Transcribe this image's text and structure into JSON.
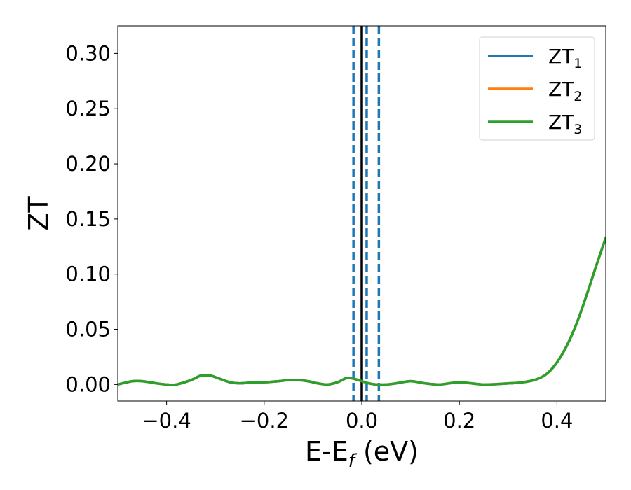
{
  "chart_data": {
    "type": "line",
    "xlabel": "E-E",
    "xlabel_sub": "f",
    "xlabel_unit": " (eV)",
    "ylabel": "ZT",
    "xlim": [
      -0.5,
      0.5
    ],
    "ylim": [
      -0.015,
      0.325
    ],
    "x_ticks": [
      -0.4,
      -0.2,
      0.0,
      0.2,
      0.4
    ],
    "x_tick_labels": [
      "−0.4",
      "−0.2",
      "0.0",
      "0.2",
      "0.4"
    ],
    "y_ticks": [
      0.0,
      0.05,
      0.1,
      0.15,
      0.2,
      0.25,
      0.3
    ],
    "y_tick_labels": [
      "0.00",
      "0.05",
      "0.10",
      "0.15",
      "0.20",
      "0.25",
      "0.30"
    ],
    "grid": false,
    "legend_position": "top-right",
    "colors": {
      "series1": "#1f77b4",
      "series2": "#ff7f0e",
      "series3": "#2ca02c",
      "vline_solid": "#000000",
      "vline_dashed": "#1f77b4"
    },
    "vlines": {
      "solid": [
        0.0
      ],
      "dashed": [
        -0.017,
        0.01,
        0.035
      ]
    },
    "series": [
      {
        "name": "ZT",
        "sub": "1",
        "color": "#1f77b4",
        "x": [
          -0.5,
          -0.47,
          -0.45,
          -0.42,
          -0.4,
          -0.38,
          -0.35,
          -0.33,
          -0.31,
          -0.29,
          -0.27,
          -0.25,
          -0.22,
          -0.2,
          -0.17,
          -0.15,
          -0.13,
          -0.11,
          -0.09,
          -0.07,
          -0.05,
          -0.03,
          -0.015,
          0.0,
          0.015,
          0.03,
          0.05,
          0.07,
          0.1,
          0.13,
          0.16,
          0.2,
          0.25,
          0.3,
          0.33,
          0.36,
          0.38,
          0.4,
          0.42,
          0.44,
          0.46,
          0.48,
          0.5
        ],
        "y": [
          0.0,
          0.003,
          0.003,
          0.001,
          0.0,
          0.0,
          0.004,
          0.008,
          0.008,
          0.005,
          0.002,
          0.001,
          0.002,
          0.002,
          0.003,
          0.004,
          0.004,
          0.003,
          0.001,
          0.0,
          0.002,
          0.006,
          0.005,
          0.003,
          0.001,
          0.0,
          0.0,
          0.001,
          0.003,
          0.001,
          0.0,
          0.002,
          0.0,
          0.001,
          0.002,
          0.005,
          0.01,
          0.02,
          0.035,
          0.055,
          0.08,
          0.107,
          0.133
        ]
      },
      {
        "name": "ZT",
        "sub": "2",
        "color": "#ff7f0e",
        "x": [
          -0.5,
          -0.47,
          -0.45,
          -0.42,
          -0.4,
          -0.38,
          -0.35,
          -0.33,
          -0.31,
          -0.29,
          -0.27,
          -0.25,
          -0.22,
          -0.2,
          -0.17,
          -0.15,
          -0.13,
          -0.11,
          -0.09,
          -0.07,
          -0.05,
          -0.03,
          -0.015,
          0.0,
          0.015,
          0.03,
          0.05,
          0.07,
          0.1,
          0.13,
          0.16,
          0.2,
          0.25,
          0.3,
          0.33,
          0.36,
          0.38,
          0.4,
          0.42,
          0.44,
          0.46,
          0.48,
          0.5
        ],
        "y": [
          0.0,
          0.003,
          0.003,
          0.001,
          0.0,
          0.0,
          0.004,
          0.008,
          0.008,
          0.005,
          0.002,
          0.001,
          0.002,
          0.002,
          0.003,
          0.004,
          0.004,
          0.003,
          0.001,
          0.0,
          0.002,
          0.006,
          0.005,
          0.003,
          0.001,
          0.0,
          0.0,
          0.001,
          0.003,
          0.001,
          0.0,
          0.002,
          0.0,
          0.001,
          0.002,
          0.005,
          0.01,
          0.02,
          0.035,
          0.055,
          0.08,
          0.107,
          0.133
        ]
      },
      {
        "name": "ZT",
        "sub": "3",
        "color": "#2ca02c",
        "x": [
          -0.5,
          -0.47,
          -0.45,
          -0.42,
          -0.4,
          -0.38,
          -0.35,
          -0.33,
          -0.31,
          -0.29,
          -0.27,
          -0.25,
          -0.22,
          -0.2,
          -0.17,
          -0.15,
          -0.13,
          -0.11,
          -0.09,
          -0.07,
          -0.05,
          -0.03,
          -0.015,
          0.0,
          0.015,
          0.03,
          0.05,
          0.07,
          0.1,
          0.13,
          0.16,
          0.2,
          0.25,
          0.3,
          0.33,
          0.36,
          0.38,
          0.4,
          0.42,
          0.44,
          0.46,
          0.48,
          0.5
        ],
        "y": [
          0.0,
          0.003,
          0.003,
          0.001,
          0.0,
          0.0,
          0.004,
          0.008,
          0.008,
          0.005,
          0.002,
          0.001,
          0.002,
          0.002,
          0.003,
          0.004,
          0.004,
          0.003,
          0.001,
          0.0,
          0.002,
          0.006,
          0.005,
          0.003,
          0.001,
          0.0,
          0.0,
          0.001,
          0.003,
          0.001,
          0.0,
          0.002,
          0.0,
          0.001,
          0.002,
          0.005,
          0.01,
          0.02,
          0.035,
          0.055,
          0.08,
          0.107,
          0.133
        ]
      }
    ]
  }
}
